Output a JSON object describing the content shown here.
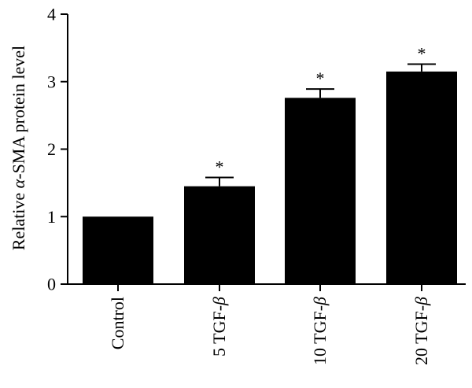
{
  "chart_data": {
    "type": "bar",
    "title": "",
    "xlabel": "",
    "ylabel": "Relative α-SMA protein level",
    "ylim": [
      0,
      4
    ],
    "yticks": [
      "0",
      "1",
      "2",
      "3",
      "4"
    ],
    "ytick_values": [
      0,
      1,
      2,
      3,
      4
    ],
    "categories": [
      "Control",
      "5 TGF-β",
      "10 TGF-β",
      "20 TGF-β"
    ],
    "values": [
      1.0,
      1.45,
      2.76,
      3.15
    ],
    "error": [
      0.0,
      0.13,
      0.13,
      0.11
    ],
    "significance": [
      "",
      "*",
      "*",
      "*"
    ],
    "grid": false,
    "legend": "none",
    "bar_color": "#000000"
  }
}
